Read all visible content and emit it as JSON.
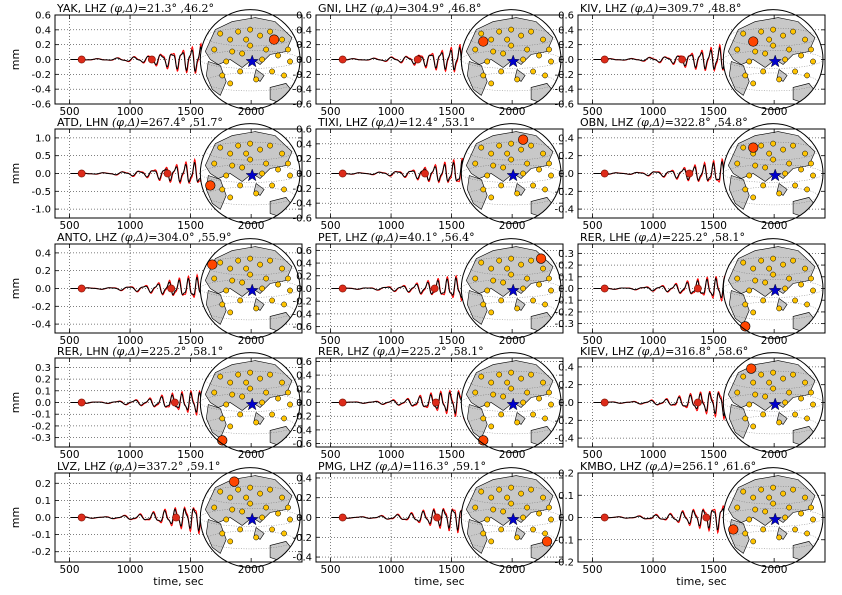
{
  "colors": {
    "observed": "#000000",
    "synthetic": "#ff0000",
    "window_marker": "#dd2b1a",
    "station_marker": "#ffc400",
    "station_highlight": "#ff4500",
    "event_star": "#0000cc",
    "land": "#c8c8c8"
  },
  "figure": {
    "ylabel": "mm",
    "xlabel": "time, sec",
    "symbol_label": "(φ,Δ)"
  },
  "chart_data": [
    {
      "type": "line",
      "station": "YAK",
      "component": "LHZ",
      "phi": "21.3°",
      "delta": "46.2°",
      "title_parts": [
        "YAK, LHZ ",
        "=21.3° ,46.2°"
      ],
      "xlim": [
        380,
        2420
      ],
      "ylim": [
        -0.6,
        0.6
      ],
      "yticks": [
        "-0.6",
        "-0.4",
        "-0.2",
        "0.0",
        "0.2",
        "0.4",
        "0.6"
      ],
      "xticks": [
        "500",
        "1000",
        "1500",
        "2000"
      ],
      "xlabel": "",
      "ylabel": "mm",
      "marker_times": [
        600,
        1180
      ],
      "obs_end": 1760,
      "syn_end": 1810,
      "grid": true,
      "map_highlight": [
        0.74,
        0.3
      ]
    },
    {
      "type": "line",
      "station": "GNI",
      "component": "LHZ",
      "phi": "304.9°",
      "delta": "46.8°",
      "title_parts": [
        "GNI, LHZ ",
        "=304.9° ,46.8°"
      ],
      "xlim": [
        380,
        2420
      ],
      "ylim": [
        -0.6,
        0.6
      ],
      "yticks": [
        "-0.6",
        "-0.4",
        "-0.2",
        "0.0",
        "0.2",
        "0.4",
        "0.6"
      ],
      "xticks": [
        "500",
        "1000",
        "1500",
        "2000"
      ],
      "xlabel": "",
      "ylabel": "",
      "marker_times": [
        600,
        1220
      ],
      "obs_end": 1800,
      "syn_end": 1810,
      "grid": true,
      "map_highlight": [
        0.22,
        0.32
      ]
    },
    {
      "type": "line",
      "station": "KIV",
      "component": "LHZ",
      "phi": "309.7°",
      "delta": "48.8°",
      "title_parts": [
        "KIV, LHZ ",
        "=309.7° ,48.8°"
      ],
      "xlim": [
        380,
        2420
      ],
      "ylim": [
        -0.6,
        0.6
      ],
      "yticks": [
        "-0.6",
        "-0.4",
        "-0.2",
        "0.0",
        "0.2",
        "0.4",
        "0.6"
      ],
      "xticks": [
        "500",
        "1000",
        "1500",
        "2000"
      ],
      "xlabel": "",
      "ylabel": "",
      "marker_times": [
        600,
        1240
      ],
      "obs_end": 1800,
      "syn_end": 1810,
      "grid": true,
      "map_highlight": [
        0.3,
        0.32
      ]
    },
    {
      "type": "line",
      "station": "ATD",
      "component": "LHN",
      "phi": "267.4°",
      "delta": "51.7°",
      "title_parts": [
        "ATD, LHN ",
        "=267.4° ,51.7°"
      ],
      "xlim": [
        380,
        2420
      ],
      "ylim": [
        -1.25,
        1.25
      ],
      "yticks": [
        "-1.0",
        "-0.5",
        "0.0",
        "0.5",
        "1.0"
      ],
      "xticks": [
        "500",
        "1000",
        "1500",
        "2000"
      ],
      "xlabel": "",
      "ylabel": "mm",
      "marker_times": [
        600,
        1310
      ],
      "obs_end": 1840,
      "syn_end": 1840,
      "grid": true,
      "map_highlight": [
        0.1,
        0.62
      ]
    },
    {
      "type": "line",
      "station": "TIXI",
      "component": "LHZ",
      "phi": "12.4°",
      "delta": "53.1°",
      "title_parts": [
        "TIXI, LHZ ",
        "=12.4° ,53.1°"
      ],
      "xlim": [
        380,
        2420
      ],
      "ylim": [
        -0.6,
        0.6
      ],
      "yticks": [
        "-0.6",
        "-0.4",
        "-0.2",
        "0.0",
        "0.2",
        "0.4",
        "0.6"
      ],
      "xticks": [
        "500",
        "1000",
        "1500",
        "2000"
      ],
      "xlabel": "",
      "ylabel": "",
      "marker_times": [
        600,
        1280
      ],
      "obs_end": 1840,
      "syn_end": 1840,
      "grid": true,
      "map_highlight": [
        0.62,
        0.16
      ]
    },
    {
      "type": "line",
      "station": "OBN",
      "component": "LHZ",
      "phi": "322.8°",
      "delta": "54.8°",
      "title_parts": [
        "OBN, LHZ ",
        "=322.8° ,54.8°"
      ],
      "xlim": [
        380,
        2420
      ],
      "ylim": [
        -0.5,
        0.5
      ],
      "yticks": [
        "-0.4",
        "-0.2",
        "0.0",
        "0.2",
        "0.4"
      ],
      "xticks": [
        "500",
        "1000",
        "1500",
        "2000"
      ],
      "xlabel": "",
      "ylabel": "",
      "marker_times": [
        600,
        1300
      ],
      "obs_end": 1860,
      "syn_end": 1880,
      "grid": true,
      "map_highlight": [
        0.3,
        0.24
      ]
    },
    {
      "type": "line",
      "station": "ANTO",
      "component": "LHZ",
      "phi": "304.0°",
      "delta": "55.9°",
      "title_parts": [
        "ANTO, LHZ ",
        "=304.0° ,55.9°"
      ],
      "xlim": [
        380,
        2420
      ],
      "ylim": [
        -0.5,
        0.5
      ],
      "yticks": [
        "-0.4",
        "-0.2",
        "0.0",
        "0.2",
        "0.4"
      ],
      "xticks": [
        "500",
        "1000",
        "1500",
        "2000"
      ],
      "xlabel": "",
      "ylabel": "mm",
      "marker_times": [
        600,
        1340
      ],
      "obs_end": 1880,
      "syn_end": 1880,
      "grid": true,
      "map_highlight": [
        0.12,
        0.26
      ]
    },
    {
      "type": "line",
      "station": "PET",
      "component": "LHZ",
      "phi": "40.1°",
      "delta": "56.4°",
      "title_parts": [
        "PET, LHZ ",
        "=40.1° ,56.4°"
      ],
      "xlim": [
        380,
        2420
      ],
      "ylim": [
        -0.7,
        0.7
      ],
      "yticks": [
        "-0.6",
        "-0.4",
        "-0.2",
        "0.0",
        "0.2",
        "0.4",
        "0.6"
      ],
      "xticks": [
        "500",
        "1000",
        "1500",
        "2000"
      ],
      "xlabel": "",
      "ylabel": "",
      "marker_times": [
        600,
        1360
      ],
      "obs_end": 1900,
      "syn_end": 1880,
      "grid": true,
      "map_highlight": [
        0.8,
        0.2
      ]
    },
    {
      "type": "line",
      "station": "RER",
      "component": "LHE",
      "phi": "225.2°",
      "delta": "58.1°",
      "title_parts": [
        "RER, LHE ",
        "=225.2° ,58.1°"
      ],
      "xlim": [
        380,
        2420
      ],
      "ylim": [
        -0.38,
        0.38
      ],
      "yticks": [
        "-0.3",
        "-0.2",
        "-0.1",
        "0.0",
        "0.1",
        "0.2",
        "0.3"
      ],
      "xticks": [
        "500",
        "1000",
        "1500",
        "2000"
      ],
      "xlabel": "",
      "ylabel": "",
      "marker_times": [
        600,
        1370
      ],
      "obs_end": 1900,
      "syn_end": 1900,
      "grid": true,
      "map_highlight": [
        0.22,
        0.88
      ]
    },
    {
      "type": "line",
      "station": "RER",
      "component": "LHN",
      "phi": "225.2°",
      "delta": "58.1°",
      "title_parts": [
        "RER, LHN ",
        "=225.2° ,58.1°"
      ],
      "xlim": [
        380,
        2420
      ],
      "ylim": [
        -0.38,
        0.38
      ],
      "yticks": [
        "-0.3",
        "-0.2",
        "-0.1",
        "0.0",
        "0.1",
        "0.2",
        "0.3"
      ],
      "xticks": [
        "500",
        "1000",
        "1500",
        "2000"
      ],
      "xlabel": "",
      "ylabel": "mm",
      "marker_times": [
        600,
        1370
      ],
      "obs_end": 1880,
      "syn_end": 1900,
      "grid": true,
      "map_highlight": [
        0.22,
        0.88
      ]
    },
    {
      "type": "line",
      "station": "RER",
      "component": "LHZ",
      "phi": "225.2°",
      "delta": "58.1°",
      "title_parts": [
        "RER, LHZ ",
        "=225.2° ,58.1°"
      ],
      "xlim": [
        380,
        2420
      ],
      "ylim": [
        -0.65,
        0.65
      ],
      "yticks": [
        "-0.6",
        "-0.4",
        "-0.2",
        "0.0",
        "0.2",
        "0.4",
        "0.6"
      ],
      "xticks": [
        "500",
        "1000",
        "1500",
        "2000"
      ],
      "xlabel": "",
      "ylabel": "",
      "marker_times": [
        600,
        1370
      ],
      "obs_end": 1790,
      "syn_end": 1900,
      "grid": true,
      "map_highlight": [
        0.22,
        0.88
      ]
    },
    {
      "type": "line",
      "station": "KIEV",
      "component": "LHZ",
      "phi": "316.8°",
      "delta": "58.6°",
      "title_parts": [
        "KIEV, LHZ ",
        "=316.8° ,58.6°"
      ],
      "xlim": [
        380,
        2420
      ],
      "ylim": [
        -0.5,
        0.5
      ],
      "yticks": [
        "-0.4",
        "-0.2",
        "0.0",
        "0.2",
        "0.4"
      ],
      "xticks": [
        "500",
        "1000",
        "1500",
        "2000"
      ],
      "xlabel": "",
      "ylabel": "",
      "marker_times": [
        600,
        1370
      ],
      "obs_end": 1780,
      "syn_end": 1900,
      "grid": true,
      "map_highlight": [
        0.28,
        0.16
      ]
    },
    {
      "type": "line",
      "station": "LVZ",
      "component": "LHZ",
      "phi": "337.2°",
      "delta": "59.1°",
      "title_parts": [
        "LVZ, LHZ ",
        "=337.2° ,59.1°"
      ],
      "xlim": [
        380,
        2420
      ],
      "ylim": [
        -0.26,
        0.26
      ],
      "yticks": [
        "-0.2",
        "-0.1",
        "0.0",
        "0.1",
        "0.2"
      ],
      "xticks": [
        "500",
        "1000",
        "1500",
        "2000"
      ],
      "xlabel": "time, sec",
      "ylabel": "mm",
      "marker_times": [
        600,
        1380
      ],
      "obs_end": 1780,
      "syn_end": 1920,
      "grid": true,
      "map_highlight": [
        0.34,
        0.14
      ]
    },
    {
      "type": "line",
      "station": "PMG",
      "component": "LHZ",
      "phi": "116.3°",
      "delta": "59.1°",
      "title_parts": [
        "PMG, LHZ ",
        "=116.3° ,59.1°"
      ],
      "xlim": [
        380,
        2420
      ],
      "ylim": [
        -0.45,
        0.45
      ],
      "yticks": [
        "-0.4",
        "-0.2",
        "0.0",
        "0.2",
        "0.4"
      ],
      "xticks": [
        "500",
        "1000",
        "1500",
        "2000"
      ],
      "xlabel": "time, sec",
      "ylabel": "",
      "marker_times": [
        600,
        1380
      ],
      "obs_end": 1800,
      "syn_end": 1920,
      "grid": true,
      "map_highlight": [
        0.86,
        0.74
      ]
    },
    {
      "type": "line",
      "station": "KMBO",
      "component": "LHZ",
      "phi": "256.1°",
      "delta": "61.6°",
      "title_parts": [
        "KMBO, LHZ ",
        "=256.1° ,61.6°"
      ],
      "xlim": [
        380,
        2420
      ],
      "ylim": [
        -0.2,
        0.2
      ],
      "yticks": [
        "-0.2",
        "-0.1",
        "0.0",
        "0.1",
        "0.2"
      ],
      "xticks": [
        "500",
        "1000",
        "1500",
        "2000"
      ],
      "xlabel": "time, sec",
      "ylabel": "",
      "marker_times": [
        600,
        1440
      ],
      "obs_end": 1780,
      "syn_end": 1960,
      "grid": true,
      "map_highlight": [
        0.1,
        0.62
      ]
    }
  ]
}
